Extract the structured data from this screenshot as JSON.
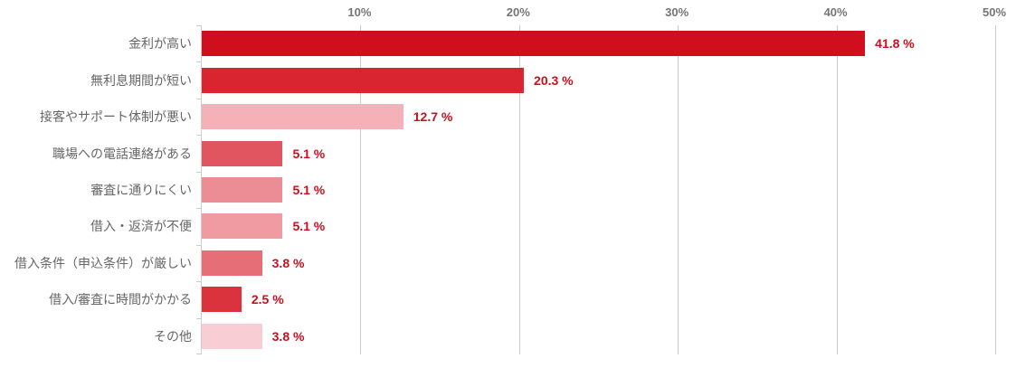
{
  "chart_data": {
    "type": "bar",
    "orientation": "horizontal",
    "title": "",
    "xlabel": "",
    "ylabel": "",
    "xlim": [
      0,
      50
    ],
    "grid": true,
    "legend": "none",
    "axis_position": "top",
    "x_tick_values": [
      10,
      20,
      30,
      40,
      50
    ],
    "x_tick_labels": [
      "10%",
      "20%",
      "30%",
      "40%",
      "50%"
    ],
    "categories": [
      "金利が高い",
      "無利息期間が短い",
      "接客やサポート体制が悪い",
      "職場への電話連絡がある",
      "審査に通りにくい",
      "借入・返済が不便",
      "借入条件（申込条件）が厳しい",
      "借入/審査に時間がかかる",
      "その他"
    ],
    "values": [
      41.8,
      20.3,
      12.7,
      5.1,
      5.1,
      5.1,
      3.8,
      2.5,
      3.8
    ],
    "value_labels": [
      "41.8 %",
      "20.3 %",
      "12.7 %",
      "5.1 %",
      "5.1 %",
      "5.1 %",
      "3.8 %",
      "2.5 %",
      "3.8 %"
    ],
    "bar_colors": [
      "#d00f1e",
      "#d8252f",
      "#f4b1b8",
      "#e05560",
      "#ec8d96",
      "#f09ba1",
      "#e66f77",
      "#da333e",
      "#f8cdd3"
    ]
  },
  "colors": {
    "value_label_text": "#c8101e",
    "axis_tick_text": "#757575",
    "category_text": "#666666",
    "gridline": "#cccccc",
    "background": "#ffffff"
  }
}
